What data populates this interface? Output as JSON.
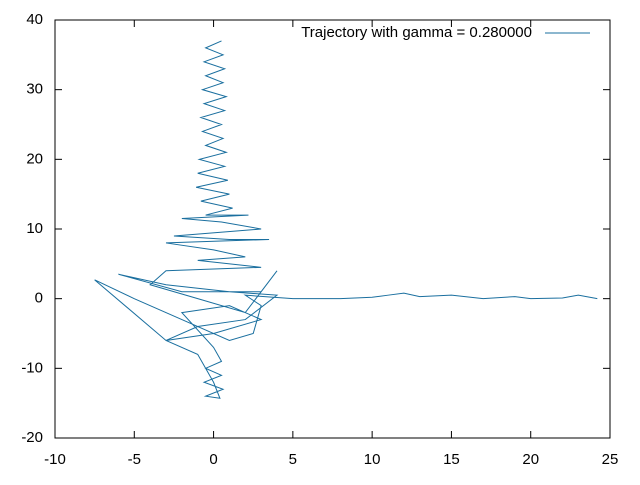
{
  "chart_data": {
    "type": "line",
    "x": [
      0.5,
      -0.5,
      0.6,
      -0.6,
      0.7,
      -0.5,
      0.6,
      -0.7,
      0.8,
      -0.6,
      0.7,
      -0.8,
      0.5,
      -0.7,
      0.6,
      -0.5,
      0.8,
      -0.9,
      0.7,
      -1,
      0.9,
      -1.1,
      1,
      -0.8,
      1.2,
      -0.5,
      2.2,
      -2,
      0.5,
      3,
      -2.5,
      1,
      3.5,
      -3,
      0,
      2,
      -1,
      3,
      -3,
      -4,
      -1,
      2,
      4,
      3,
      -2,
      -6,
      -3,
      1,
      4,
      2,
      -1,
      -3,
      0,
      3,
      1,
      -2,
      0,
      0.5,
      -0.5,
      0.5,
      -0.6,
      0.6,
      -0.5,
      0.4,
      0,
      -1,
      -3,
      -7.5,
      -5,
      -2,
      1,
      2.5,
      3,
      2,
      5,
      8,
      10,
      11,
      12,
      13,
      15,
      17,
      19,
      20,
      22,
      23,
      24.2
    ],
    "series": [
      {
        "name": "Trajectory with gamma = 0.280000",
        "color": "#1a6f9f",
        "values": [
          37,
          36,
          35,
          34,
          33,
          32,
          31,
          30,
          29,
          28,
          27,
          26,
          25,
          24,
          23,
          22,
          21,
          20,
          19,
          18,
          17,
          16,
          15,
          14,
          13,
          12,
          12,
          11.5,
          11,
          10,
          9,
          8.5,
          8.5,
          8,
          7,
          6,
          5.5,
          4.5,
          4,
          2,
          0,
          -2,
          4,
          1,
          1,
          3.5,
          2,
          1,
          0.5,
          -3,
          -4,
          -6,
          -5,
          -3,
          -1,
          -2,
          -7,
          -9,
          -10,
          -11,
          -12,
          -13,
          -14,
          -14.3,
          -12,
          -8,
          -6,
          2.7,
          0,
          -3,
          -6,
          -5,
          -1,
          0.5,
          0,
          0,
          0.2,
          0.5,
          0.8,
          0.3,
          0.5,
          0,
          0.3,
          0,
          0.1,
          0.5,
          0
        ]
      }
    ],
    "xlim": [
      -10,
      25
    ],
    "xticks": [
      -10,
      -5,
      0,
      5,
      10,
      15,
      20,
      25
    ],
    "ylim": [
      -20,
      40
    ],
    "yticks": [
      -20,
      -10,
      0,
      10,
      20,
      30,
      40
    ],
    "legend": "top-right"
  }
}
